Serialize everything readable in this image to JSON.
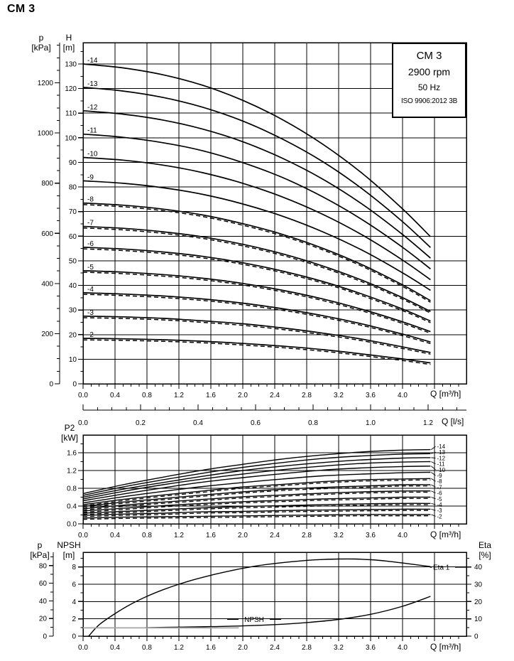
{
  "page_title": "CM 3",
  "info_box": {
    "line1": "CM 3",
    "line2": "2900 rpm",
    "line3": "50 Hz",
    "line4": "ISO 9906:2012 3B"
  },
  "axes": {
    "main": {
      "p_label": "p",
      "p_unit": "[kPa]",
      "h_label": "H",
      "h_unit": "[m]",
      "q_label": "Q [m³/h]",
      "q_ls_label": "Q [l/s]"
    },
    "p2": {
      "label": "P2",
      "unit": "[kW]",
      "q_label": "Q [m³/h]"
    },
    "npsh": {
      "p_label": "p",
      "p_unit": "[kPa]",
      "npsh_label": "NPSH",
      "npsh_unit": "[m]",
      "eta_label": "Eta",
      "eta_unit": "[%]",
      "q_label": "Q [m³/h]"
    }
  },
  "colors": {
    "ink": "#000000",
    "gray_curve": "#a6a6a6",
    "background": "#ffffff"
  },
  "chart_data": [
    {
      "type": "line",
      "title": "CM 3 2900 rpm 50 Hz head curves",
      "xlabel": "Q [m³/h]",
      "ylabel": "H [m]",
      "y2label": "p [kPa]",
      "xlim": [
        0,
        4.8
      ],
      "ylim": [
        0,
        138.7
      ],
      "x_tick_labels": [
        "0.0",
        "0.4",
        "0.8",
        "1.2",
        "1.6",
        "2.0",
        "2.4",
        "2.8",
        "3.2",
        "3.6",
        "4.0"
      ],
      "x_secondary": {
        "label": "Q [l/s]",
        "tick_labels": [
          "0.0",
          "0.2",
          "0.4",
          "0.6",
          "0.8",
          "1.0",
          "1.2"
        ]
      },
      "h_tick_labels": [
        "0",
        "10",
        "20",
        "30",
        "40",
        "50",
        "60",
        "70",
        "80",
        "90",
        "100",
        "110",
        "120",
        "130"
      ],
      "p_tick_labels": [
        "0",
        "200",
        "400",
        "600",
        "800",
        "1000",
        "1200"
      ],
      "q": [
        0,
        0.5,
        1,
        1.5,
        2,
        2.5,
        3,
        3.5,
        4,
        4.35
      ],
      "series": [
        {
          "name": "-14",
          "values": [
            130,
            128.4,
            125.6,
            121.3,
            115.2,
            107.3,
            97.4,
            85.4,
            71.1,
            59.8
          ]
        },
        {
          "name": "-13",
          "values": [
            120.5,
            119,
            116.4,
            112.4,
            106.8,
            99.4,
            90.3,
            79.1,
            65.9,
            55.4
          ]
        },
        {
          "name": "-12",
          "values": [
            111,
            109.6,
            107.2,
            103.5,
            98.4,
            91.6,
            83.2,
            72.9,
            60.7,
            51.1
          ]
        },
        {
          "name": "-11",
          "values": [
            101.5,
            100.2,
            98,
            94.7,
            89.9,
            83.8,
            76,
            66.6,
            55.5,
            46.7
          ]
        },
        {
          "name": "-10",
          "values": [
            92,
            90.9,
            88.9,
            85.8,
            81.5,
            75.9,
            68.9,
            60.4,
            50.3,
            42.3
          ]
        },
        {
          "name": "-9",
          "values": [
            82.5,
            81.5,
            79.7,
            77,
            73.1,
            68.1,
            61.8,
            54.2,
            45.1,
            38
          ]
        },
        {
          "name": "-8",
          "values": [
            73.5,
            72.6,
            71,
            68.6,
            65.1,
            60.7,
            55.1,
            48.3,
            40.2,
            33.8
          ]
        },
        {
          "name": "-7",
          "values": [
            64,
            63.2,
            61.8,
            59.7,
            56.7,
            52.8,
            47.9,
            42,
            35,
            29.4
          ]
        },
        {
          "name": "-6",
          "values": [
            55.5,
            54.8,
            53.6,
            51.8,
            49.2,
            45.8,
            41.6,
            36.4,
            30.4,
            25.5
          ]
        },
        {
          "name": "-5",
          "values": [
            46,
            45.4,
            44.4,
            42.9,
            40.8,
            38,
            34.5,
            30.2,
            25.2,
            21.2
          ]
        },
        {
          "name": "-4",
          "values": [
            37,
            36.5,
            35.7,
            34.5,
            32.8,
            30.5,
            27.7,
            24.3,
            20.2,
            17
          ]
        },
        {
          "name": "-3",
          "values": [
            27.5,
            27.2,
            26.6,
            25.6,
            24.4,
            22.7,
            20.6,
            18.1,
            15,
            12.7
          ]
        },
        {
          "name": "-2",
          "values": [
            18.5,
            18.3,
            17.9,
            17.3,
            16.4,
            15.3,
            13.9,
            12.1,
            10.1,
            8.5
          ]
        }
      ],
      "dashed_series": [
        "-8",
        "-7",
        "-6",
        "-5",
        "-4",
        "-3",
        "-2"
      ]
    },
    {
      "type": "line",
      "title": "P2 power curves",
      "xlabel": "Q [m³/h]",
      "ylabel": "P2 [kW]",
      "xlim": [
        0,
        4.8
      ],
      "ylim": [
        0,
        2
      ],
      "x_tick_labels": [
        "0.0",
        "0.4",
        "0.8",
        "1.2",
        "1.6",
        "2.0",
        "2.4",
        "2.8",
        "3.2",
        "3.6",
        "4.0"
      ],
      "y_tick_labels": [
        "0.0",
        "0.4",
        "0.8",
        "1.2",
        "1.6"
      ],
      "q": [
        0,
        0.5,
        1,
        1.5,
        2,
        2.5,
        3,
        3.5,
        4,
        4.35
      ],
      "series": [
        {
          "name": "-14",
          "values": [
            0.68,
            0.88,
            1.05,
            1.21,
            1.34,
            1.46,
            1.55,
            1.62,
            1.66,
            1.67
          ]
        },
        {
          "name": "-13",
          "values": [
            0.64,
            0.83,
            0.99,
            1.14,
            1.27,
            1.38,
            1.47,
            1.53,
            1.57,
            1.58
          ]
        },
        {
          "name": "-12",
          "values": [
            0.6,
            0.78,
            0.93,
            1.07,
            1.2,
            1.3,
            1.38,
            1.44,
            1.48,
            1.49
          ]
        },
        {
          "name": "-11",
          "values": [
            0.56,
            0.73,
            0.88,
            1.01,
            1.12,
            1.22,
            1.3,
            1.36,
            1.39,
            1.4
          ]
        },
        {
          "name": "-10",
          "values": [
            0.52,
            0.67,
            0.81,
            0.94,
            1.04,
            1.13,
            1.21,
            1.26,
            1.29,
            1.3
          ]
        },
        {
          "name": "-9",
          "values": [
            0.47,
            0.61,
            0.73,
            0.84,
            0.93,
            1.01,
            1.08,
            1.12,
            1.15,
            1.16
          ]
        },
        {
          "name": "-8",
          "values": [
            0.43,
            0.55,
            0.65,
            0.74,
            0.83,
            0.89,
            0.95,
            0.99,
            1.01,
            1.02
          ]
        },
        {
          "name": "-7",
          "values": [
            0.39,
            0.49,
            0.57,
            0.65,
            0.72,
            0.78,
            0.82,
            0.85,
            0.88,
            0.88
          ]
        },
        {
          "name": "-6",
          "values": [
            0.34,
            0.42,
            0.49,
            0.55,
            0.61,
            0.65,
            0.69,
            0.72,
            0.74,
            0.74
          ]
        },
        {
          "name": "-5",
          "values": [
            0.29,
            0.35,
            0.41,
            0.46,
            0.5,
            0.53,
            0.56,
            0.58,
            0.6,
            0.6
          ]
        },
        {
          "name": "-4",
          "values": [
            0.24,
            0.28,
            0.32,
            0.36,
            0.39,
            0.41,
            0.43,
            0.45,
            0.46,
            0.46
          ]
        },
        {
          "name": "-3",
          "values": [
            0.19,
            0.22,
            0.24,
            0.27,
            0.28,
            0.3,
            0.31,
            0.32,
            0.33,
            0.33
          ]
        },
        {
          "name": "-2",
          "values": [
            0.13,
            0.15,
            0.16,
            0.17,
            0.18,
            0.19,
            0.2,
            0.21,
            0.21,
            0.21
          ]
        }
      ],
      "dashed_series": [
        "-8",
        "-7",
        "-6",
        "-5",
        "-4",
        "-3",
        "-2"
      ]
    },
    {
      "type": "line",
      "title": "Efficiency and NPSH",
      "xlabel": "Q [m³/h]",
      "ylabel": "NPSH [m]",
      "y2label": "Eta [%]",
      "xlim": [
        0,
        4.8
      ],
      "ylim_m": [
        0,
        9.7
      ],
      "ylim_eta": [
        0,
        48.5
      ],
      "x_tick_labels": [
        "0.0",
        "0.4",
        "0.8",
        "1.2",
        "1.6",
        "2.0",
        "2.4",
        "2.8",
        "3.2",
        "3.6",
        "4.0"
      ],
      "m_tick_labels": [
        "0",
        "2",
        "4",
        "6",
        "8"
      ],
      "p_tick_labels": [
        "0",
        "20",
        "40",
        "60",
        "80"
      ],
      "eta_tick_labels": [
        "0",
        "10",
        "20",
        "30",
        "40"
      ],
      "eta_curve_label": "Eta 1",
      "npsh_curve_label": "NPSH",
      "series": [
        {
          "name": "Eta 1",
          "axis": "eta",
          "points": [
            [
              0.07,
              0
            ],
            [
              0.2,
              6.5
            ],
            [
              0.4,
              13
            ],
            [
              0.6,
              18.5
            ],
            [
              0.8,
              23
            ],
            [
              1,
              26.8
            ],
            [
              1.2,
              30
            ],
            [
              1.4,
              32.8
            ],
            [
              1.6,
              35.2
            ],
            [
              1.8,
              37.3
            ],
            [
              2,
              39.2
            ],
            [
              2.2,
              40.8
            ],
            [
              2.4,
              42
            ],
            [
              2.6,
              43
            ],
            [
              2.8,
              43.8
            ],
            [
              3,
              44.3
            ],
            [
              3.2,
              44.6
            ],
            [
              3.4,
              44.6
            ],
            [
              3.6,
              44.2
            ],
            [
              3.8,
              43.4
            ],
            [
              4,
              42.3
            ],
            [
              4.35,
              40.2
            ]
          ]
        },
        {
          "name": "NPSH",
          "axis": "m",
          "points": [
            [
              0.78,
              0.98
            ],
            [
              1.2,
              1.04
            ],
            [
              1.6,
              1.1
            ],
            [
              2,
              1.18
            ],
            [
              2.4,
              1.33
            ],
            [
              2.8,
              1.57
            ],
            [
              3.2,
              1.93
            ],
            [
              3.6,
              2.52
            ],
            [
              4,
              3.45
            ],
            [
              4.35,
              4.6
            ]
          ]
        },
        {
          "name": "NPSH flat",
          "axis": "m",
          "gray": true,
          "points": [
            [
              0,
              0.95
            ],
            [
              1.95,
              0.95
            ]
          ]
        }
      ]
    }
  ]
}
